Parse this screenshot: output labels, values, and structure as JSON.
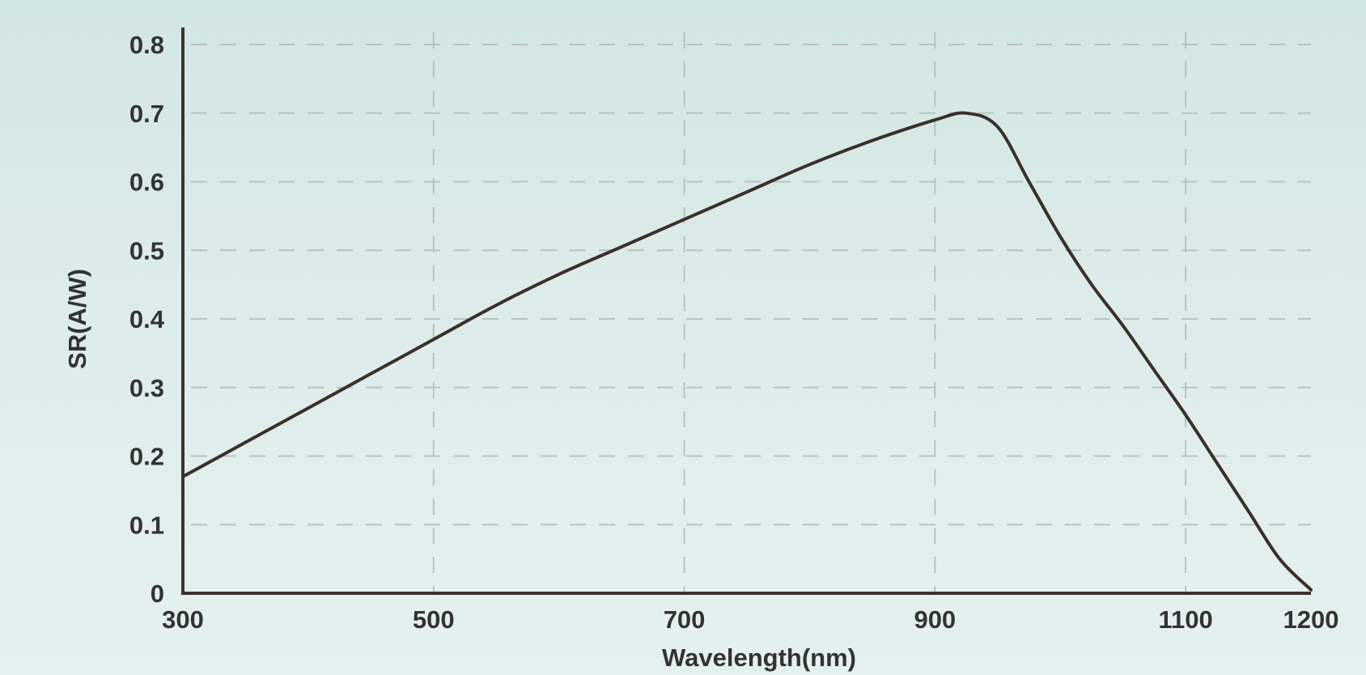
{
  "chart_data": {
    "type": "line",
    "title": "",
    "xlabel": "Wavelength(nm)",
    "ylabel": "SR(A/W)",
    "x_ticks": [
      {
        "value": 300,
        "label": "300"
      },
      {
        "value": 500,
        "label": "500"
      },
      {
        "value": 700,
        "label": "700"
      },
      {
        "value": 900,
        "label": "900"
      },
      {
        "value": 1100,
        "label": "1100"
      },
      {
        "value": 1200,
        "label": "1200"
      }
    ],
    "x_grid": [
      500,
      700,
      900,
      1100
    ],
    "y_ticks": [
      {
        "value": 0,
        "label": "0"
      },
      {
        "value": 0.1,
        "label": "0.1"
      },
      {
        "value": 0.2,
        "label": "0.2"
      },
      {
        "value": 0.3,
        "label": "0.3"
      },
      {
        "value": 0.4,
        "label": "0.4"
      },
      {
        "value": 0.5,
        "label": "0.5"
      },
      {
        "value": 0.6,
        "label": "0.6"
      },
      {
        "value": 0.7,
        "label": "0.7"
      },
      {
        "value": 0.8,
        "label": "0.8"
      }
    ],
    "ylim": [
      0,
      0.8
    ],
    "grid": true,
    "grid_style": "dashed",
    "series": [
      {
        "color": "#3b2f2a",
        "x": [
          300,
          350,
          400,
          450,
          500,
          550,
          600,
          650,
          700,
          750,
          800,
          850,
          900,
          925,
          950,
          975,
          1000,
          1025,
          1050,
          1075,
          1100,
          1125,
          1150,
          1175,
          1200
        ],
        "y": [
          0.17,
          0.22,
          0.27,
          0.32,
          0.37,
          0.42,
          0.465,
          0.505,
          0.545,
          0.585,
          0.625,
          0.66,
          0.69,
          0.7,
          0.68,
          0.6,
          0.52,
          0.45,
          0.39,
          0.325,
          0.26,
          0.19,
          0.12,
          0.05,
          0.005
        ]
      }
    ]
  }
}
